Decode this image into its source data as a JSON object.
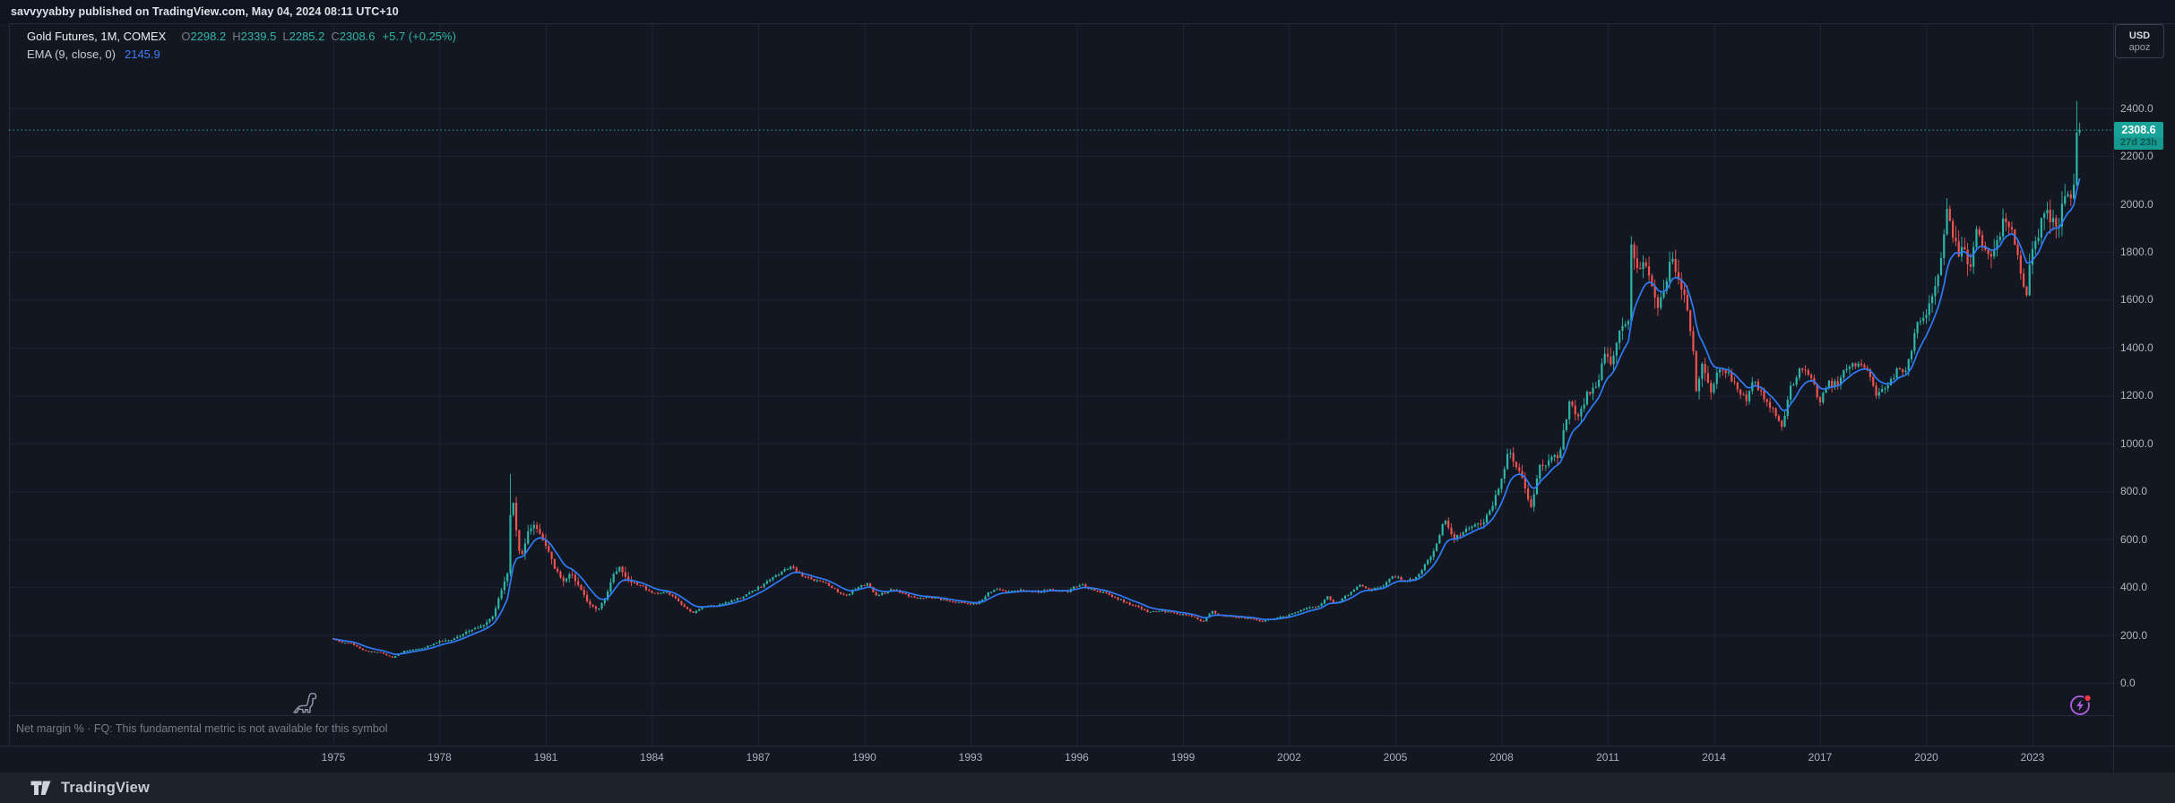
{
  "header": {
    "text": "savvyyabby published on TradingView.com, May 04, 2024 08:11 UTC+10"
  },
  "legend": {
    "symbol_title": "Gold Futures, 1M, COMEX",
    "ohlc": [
      {
        "label": "O",
        "value": "2298.2"
      },
      {
        "label": "H",
        "value": "2339.5"
      },
      {
        "label": "L",
        "value": "2285.2"
      },
      {
        "label": "C",
        "value": "2308.6"
      }
    ],
    "change": "+5.7 (+0.25%)",
    "ema_label": "EMA (9, close, 0)",
    "ema_value": "2145.9"
  },
  "price_axis": {
    "currency": "USD",
    "unit": "apoz",
    "last_price": "2308.6",
    "countdown": "27d 23h"
  },
  "status_bar": {
    "text": "Net margin % · FQ: This fundamental metric is not available for this symbol"
  },
  "footer": {
    "brand": "TradingView"
  },
  "icons": {
    "bottom_left": "dinosaur-icon",
    "bottom_right": "lightning-circle-icon",
    "logo": "tradingview-logo-icon"
  },
  "colors": {
    "background": "#131722",
    "header_bg": "#101420",
    "footer_bg": "#1e222d",
    "pane_border": "#252b3b",
    "grid": "#1d2330",
    "up": "#2eb5a7",
    "down": "#ef5350",
    "ema": "#2e7bf6",
    "current_price_line": "#2eb5a7",
    "badge_bg": "#17a398",
    "badge_text": "#ffffff",
    "countdown_text": "#0a564f",
    "axis_text": "#b0b4bf",
    "muted_text": "#787b86",
    "purple": "#ad5fe0",
    "red_dot": "#f23645"
  },
  "chart_data": {
    "type": "candlestick",
    "title": "Gold Futures, 1M, COMEX",
    "interval": "1M",
    "overlay": "EMA(9, close, 0)",
    "x_ticks": [
      1975,
      1978,
      1981,
      1984,
      1987,
      1990,
      1993,
      1996,
      1999,
      2002,
      2005,
      2008,
      2011,
      2014,
      2017,
      2020,
      2023
    ],
    "y_ticks": [
      0,
      200,
      400,
      600,
      800,
      1000,
      1200,
      1400,
      1600,
      1800,
      2000,
      2200,
      2400
    ],
    "y_unit": "USD/apoz",
    "x_range": [
      1974.6,
      2025.4
    ],
    "y_range": [
      -130,
      2760
    ],
    "grid": true,
    "last_candle": {
      "t": 2024.333,
      "open": 2298.2,
      "high": 2339.5,
      "low": 2285.2,
      "close": 2308.6
    },
    "ema": {
      "period": 9,
      "source": "close",
      "offset": 0,
      "last": 2145.9
    },
    "current_price": 2308.6,
    "spike_overrides": [
      {
        "t": 1980.0,
        "high": 873
      },
      {
        "t": 2024.25,
        "high": 2431
      }
    ],
    "anchors": [
      [
        1975.0,
        183
      ],
      [
        1975.25,
        168
      ],
      [
        1975.5,
        166
      ],
      [
        1975.75,
        142
      ],
      [
        1976.0,
        131
      ],
      [
        1976.33,
        127
      ],
      [
        1976.67,
        104
      ],
      [
        1977.0,
        133
      ],
      [
        1977.5,
        143
      ],
      [
        1978.0,
        173
      ],
      [
        1978.42,
        184
      ],
      [
        1978.75,
        212
      ],
      [
        1979.0,
        227
      ],
      [
        1979.25,
        240
      ],
      [
        1979.5,
        277
      ],
      [
        1979.75,
        385
      ],
      [
        1979.92,
        463
      ],
      [
        1980.04,
        820
      ],
      [
        1980.13,
        665
      ],
      [
        1980.29,
        515
      ],
      [
        1980.5,
        630
      ],
      [
        1980.71,
        660
      ],
      [
        1980.92,
        600
      ],
      [
        1981.04,
        560
      ],
      [
        1981.25,
        480
      ],
      [
        1981.5,
        425
      ],
      [
        1981.71,
        460
      ],
      [
        1982.0,
        387
      ],
      [
        1982.21,
        330
      ],
      [
        1982.46,
        302
      ],
      [
        1982.67,
        350
      ],
      [
        1982.88,
        440
      ],
      [
        1983.08,
        490
      ],
      [
        1983.33,
        425
      ],
      [
        1983.67,
        410
      ],
      [
        1984.0,
        375
      ],
      [
        1984.42,
        378
      ],
      [
        1984.75,
        340
      ],
      [
        1985.13,
        292
      ],
      [
        1985.5,
        320
      ],
      [
        1985.92,
        325
      ],
      [
        1986.25,
        342
      ],
      [
        1986.58,
        360
      ],
      [
        1986.92,
        390
      ],
      [
        1987.25,
        420
      ],
      [
        1987.58,
        455
      ],
      [
        1987.92,
        488
      ],
      [
        1988.25,
        445
      ],
      [
        1988.58,
        430
      ],
      [
        1988.92,
        415
      ],
      [
        1989.21,
        385
      ],
      [
        1989.5,
        365
      ],
      [
        1989.83,
        403
      ],
      [
        1990.08,
        412
      ],
      [
        1990.33,
        368
      ],
      [
        1990.58,
        375
      ],
      [
        1990.75,
        395
      ],
      [
        1991.0,
        380
      ],
      [
        1991.33,
        360
      ],
      [
        1991.67,
        355
      ],
      [
        1992.0,
        355
      ],
      [
        1992.42,
        340
      ],
      [
        1992.75,
        335
      ],
      [
        1993.17,
        328
      ],
      [
        1993.5,
        375
      ],
      [
        1993.75,
        392
      ],
      [
        1994.08,
        380
      ],
      [
        1994.5,
        386
      ],
      [
        1994.92,
        380
      ],
      [
        1995.33,
        390
      ],
      [
        1995.75,
        383
      ],
      [
        1996.08,
        412
      ],
      [
        1996.5,
        388
      ],
      [
        1996.92,
        368
      ],
      [
        1997.33,
        340
      ],
      [
        1997.67,
        320
      ],
      [
        1998.0,
        295
      ],
      [
        1998.42,
        300
      ],
      [
        1998.75,
        292
      ],
      [
        1999.17,
        283
      ],
      [
        1999.58,
        256
      ],
      [
        1999.79,
        300
      ],
      [
        2000.0,
        287
      ],
      [
        2000.33,
        276
      ],
      [
        2000.67,
        273
      ],
      [
        2001.0,
        265
      ],
      [
        2001.29,
        258
      ],
      [
        2001.63,
        272
      ],
      [
        2002.0,
        282
      ],
      [
        2002.42,
        312
      ],
      [
        2002.83,
        320
      ],
      [
        2003.08,
        358
      ],
      [
        2003.29,
        330
      ],
      [
        2003.67,
        370
      ],
      [
        2003.96,
        410
      ],
      [
        2004.29,
        388
      ],
      [
        2004.67,
        405
      ],
      [
        2004.92,
        445
      ],
      [
        2005.25,
        428
      ],
      [
        2005.58,
        437
      ],
      [
        2005.92,
        512
      ],
      [
        2006.13,
        560
      ],
      [
        2006.38,
        690
      ],
      [
        2006.63,
        600
      ],
      [
        2006.88,
        630
      ],
      [
        2007.13,
        655
      ],
      [
        2007.46,
        660
      ],
      [
        2007.71,
        730
      ],
      [
        2007.96,
        830
      ],
      [
        2008.21,
        975
      ],
      [
        2008.46,
        890
      ],
      [
        2008.63,
        830
      ],
      [
        2008.83,
        735
      ],
      [
        2009.08,
        900
      ],
      [
        2009.33,
        925
      ],
      [
        2009.63,
        955
      ],
      [
        2009.92,
        1170
      ],
      [
        2010.17,
        1110
      ],
      [
        2010.42,
        1210
      ],
      [
        2010.71,
        1250
      ],
      [
        2010.92,
        1385
      ],
      [
        2011.08,
        1330
      ],
      [
        2011.33,
        1480
      ],
      [
        2011.58,
        1505
      ],
      [
        2011.67,
        1830
      ],
      [
        2011.75,
        1780
      ],
      [
        2011.83,
        1720
      ],
      [
        2012.0,
        1745
      ],
      [
        2012.17,
        1700
      ],
      [
        2012.38,
        1560
      ],
      [
        2012.63,
        1650
      ],
      [
        2012.79,
        1770
      ],
      [
        2013.0,
        1675
      ],
      [
        2013.21,
        1590
      ],
      [
        2013.42,
        1390
      ],
      [
        2013.5,
        1230
      ],
      [
        2013.67,
        1320
      ],
      [
        2013.92,
        1200
      ],
      [
        2014.13,
        1320
      ],
      [
        2014.42,
        1290
      ],
      [
        2014.71,
        1215
      ],
      [
        2014.92,
        1185
      ],
      [
        2015.08,
        1265
      ],
      [
        2015.42,
        1190
      ],
      [
        2015.67,
        1135
      ],
      [
        2015.92,
        1062
      ],
      [
        2016.17,
        1235
      ],
      [
        2016.5,
        1320
      ],
      [
        2016.79,
        1270
      ],
      [
        2016.96,
        1150
      ],
      [
        2017.21,
        1250
      ],
      [
        2017.54,
        1245
      ],
      [
        2017.71,
        1315
      ],
      [
        2018.04,
        1340
      ],
      [
        2018.33,
        1315
      ],
      [
        2018.63,
        1195
      ],
      [
        2018.92,
        1250
      ],
      [
        2019.17,
        1300
      ],
      [
        2019.42,
        1290
      ],
      [
        2019.63,
        1420
      ],
      [
        2019.71,
        1525
      ],
      [
        2019.96,
        1520
      ],
      [
        2020.13,
        1590
      ],
      [
        2020.33,
        1680
      ],
      [
        2020.58,
        1975
      ],
      [
        2020.71,
        1890
      ],
      [
        2020.92,
        1775
      ],
      [
        2021.04,
        1845
      ],
      [
        2021.21,
        1715
      ],
      [
        2021.42,
        1905
      ],
      [
        2021.63,
        1810
      ],
      [
        2021.79,
        1780
      ],
      [
        2021.96,
        1805
      ],
      [
        2022.13,
        1900
      ],
      [
        2022.21,
        1940
      ],
      [
        2022.38,
        1895
      ],
      [
        2022.58,
        1805
      ],
      [
        2022.71,
        1650
      ],
      [
        2022.83,
        1630
      ],
      [
        2023.0,
        1825
      ],
      [
        2023.13,
        1830
      ],
      [
        2023.29,
        1985
      ],
      [
        2023.42,
        1965
      ],
      [
        2023.58,
        1920
      ],
      [
        2023.71,
        1865
      ],
      [
        2023.83,
        1985
      ],
      [
        2023.96,
        2060
      ],
      [
        2024.08,
        2045
      ],
      [
        2024.17,
        2080
      ],
      [
        2024.25,
        2295
      ],
      [
        2024.33,
        2308.6
      ]
    ]
  }
}
